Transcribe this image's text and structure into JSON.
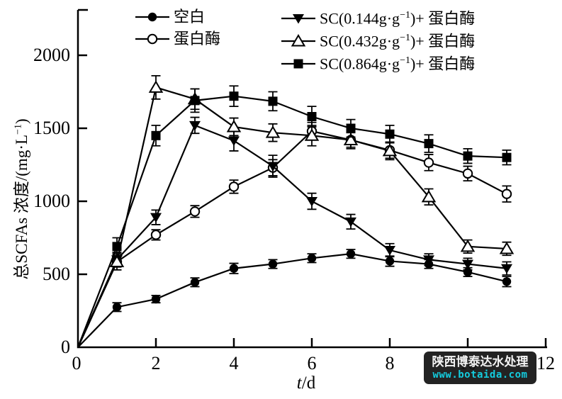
{
  "watermark": {
    "line1": "陕西博泰达水处理",
    "line2": "www.botaida.com",
    "bg": "#111111",
    "bg_opacity": 0.92,
    "line1_color": "#f2f2f2",
    "line2_color": "#00c8dc"
  },
  "chart_data": {
    "type": "line",
    "title": "",
    "xlabel_italic": "t",
    "xlabel_rest": "/d",
    "ylabel_pre": "总SCFAs 浓度/(mg·L",
    "ylabel_sup": "−1",
    "ylabel_post": ")",
    "xlim": [
      0,
      12
    ],
    "ylim": [
      0,
      2300
    ],
    "xticks": [
      0,
      2,
      4,
      6,
      8,
      10,
      12
    ],
    "yticks": [
      0,
      500,
      1000,
      1500,
      2000
    ],
    "grid": false,
    "legend_position": "top",
    "axis_color": "#000000",
    "x": [
      0,
      1,
      2,
      3,
      4,
      5,
      6,
      7,
      8,
      9,
      10,
      11
    ],
    "series": [
      {
        "id": "blank",
        "label_pre": "空白",
        "label_sup": "",
        "label_post": "",
        "marker": "filled-circle",
        "values": [
          0,
          275,
          330,
          445,
          540,
          570,
          610,
          640,
          590,
          570,
          515,
          450
        ],
        "errors": [
          0,
          30,
          25,
          30,
          35,
          30,
          30,
          30,
          35,
          30,
          30,
          35
        ]
      },
      {
        "id": "protease",
        "label_pre": "蛋白酶",
        "label_sup": "",
        "label_post": "",
        "marker": "open-circle",
        "values": [
          0,
          585,
          770,
          930,
          1100,
          1230,
          1480,
          1420,
          1350,
          1265,
          1190,
          1050
        ],
        "errors": [
          0,
          35,
          35,
          40,
          45,
          55,
          60,
          50,
          55,
          55,
          50,
          55
        ]
      },
      {
        "id": "sc-0144",
        "label_pre": "SC(0.144g·g",
        "label_sup": "−1",
        "label_post": ")+ 蛋白酶",
        "marker": "filled-triangle-down",
        "values": [
          0,
          600,
          890,
          1520,
          1415,
          1240,
          1000,
          860,
          665,
          600,
          570,
          540
        ],
        "errors": [
          0,
          50,
          50,
          55,
          70,
          75,
          55,
          50,
          45,
          40,
          40,
          45
        ]
      },
      {
        "id": "sc-0432",
        "label_pre": "SC(0.432g·g",
        "label_sup": "−1",
        "label_post": ")+ 蛋白酶",
        "marker": "open-triangle-up",
        "values": [
          0,
          585,
          1780,
          1700,
          1510,
          1470,
          1450,
          1420,
          1345,
          1030,
          690,
          675
        ],
        "errors": [
          0,
          55,
          80,
          70,
          60,
          60,
          70,
          60,
          60,
          55,
          45,
          45
        ]
      },
      {
        "id": "sc-0864",
        "label_pre": "SC(0.864g·g",
        "label_sup": "−1",
        "label_post": ")+ 蛋白酶",
        "marker": "filled-square",
        "values": [
          0,
          690,
          1450,
          1690,
          1720,
          1685,
          1580,
          1500,
          1460,
          1395,
          1310,
          1300
        ],
        "errors": [
          0,
          60,
          70,
          80,
          70,
          65,
          70,
          60,
          60,
          60,
          50,
          50
        ]
      }
    ]
  },
  "legend": {
    "columns": [
      [
        0,
        1
      ],
      [
        2,
        3,
        4
      ]
    ]
  }
}
